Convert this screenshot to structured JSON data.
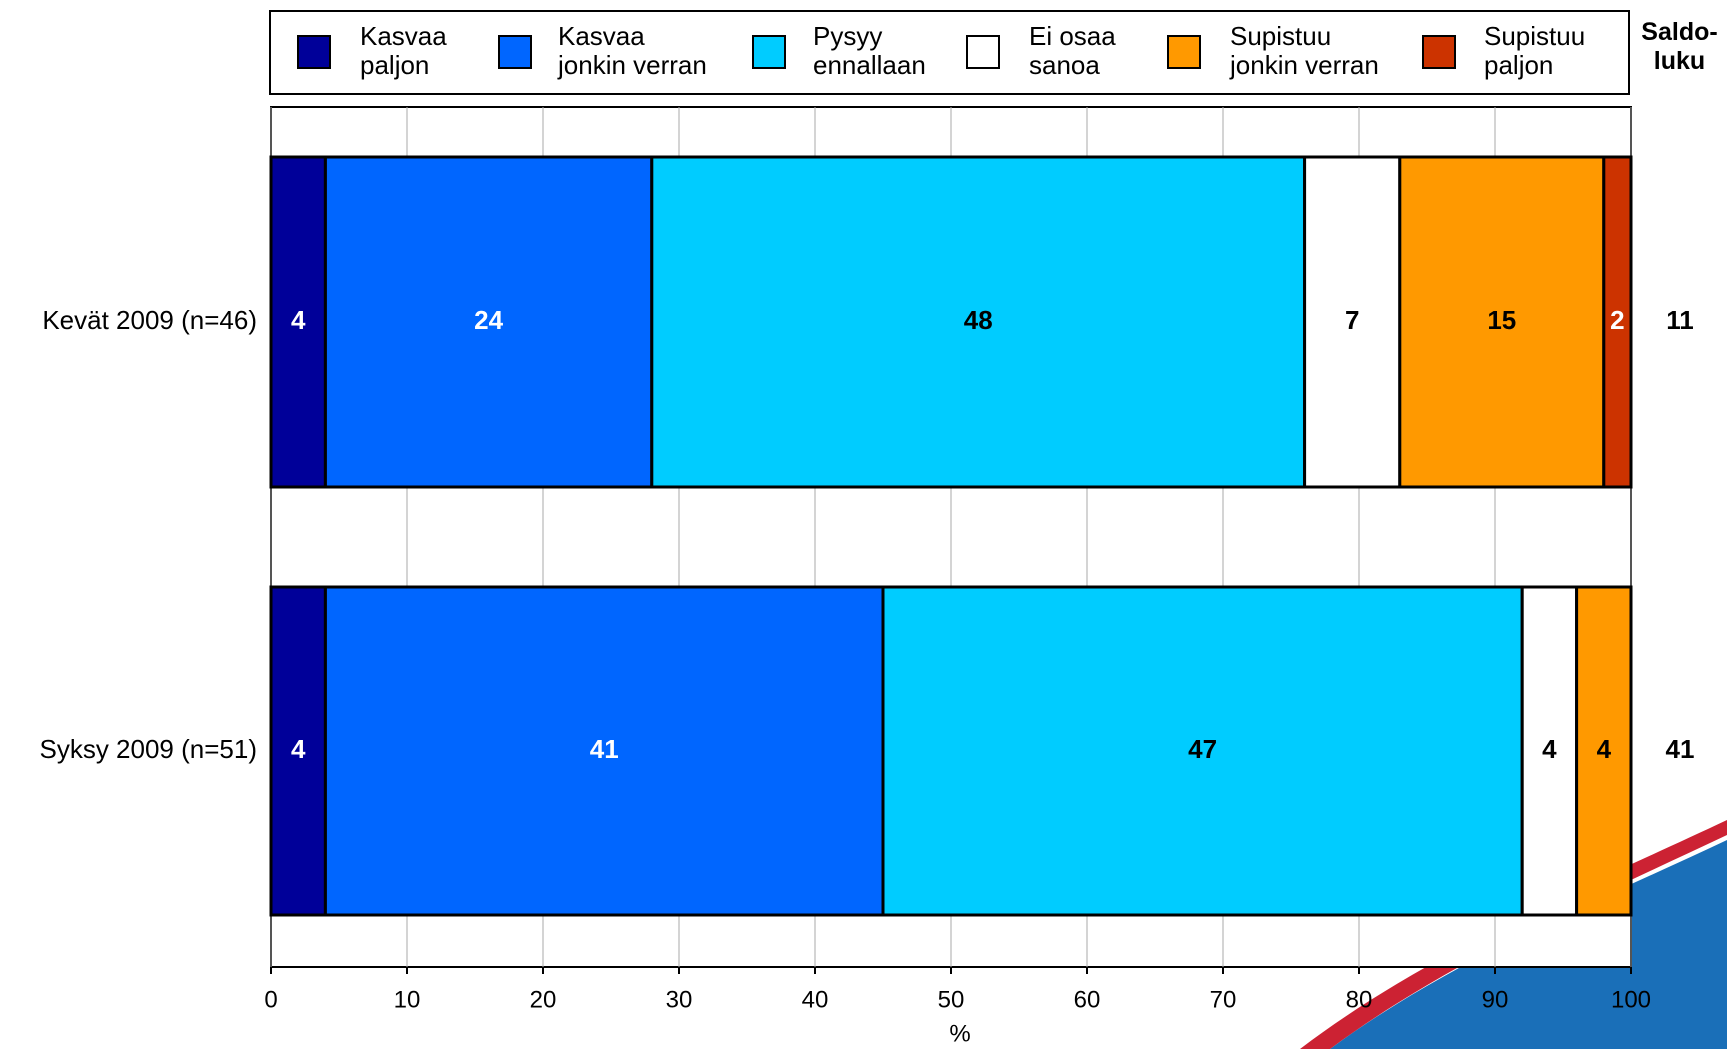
{
  "chart_data": {
    "type": "stacked-barh",
    "categories": [
      "Kevät 2009 (n=46)",
      "Syksy 2009 (n=51)"
    ],
    "series": [
      {
        "name": "Kasvaa\npaljon",
        "color": "#000099",
        "label_color": "#ffffff",
        "values": [
          4,
          4
        ]
      },
      {
        "name": "Kasvaa\njonkin verran",
        "color": "#0066ff",
        "label_color": "#ffffff",
        "values": [
          24,
          41
        ]
      },
      {
        "name": "Pysyy\nennallaan",
        "color": "#00ccff",
        "label_color": "#000000",
        "values": [
          48,
          47
        ]
      },
      {
        "name": "Ei osaa\nsanoa",
        "color": "#ffffff",
        "label_color": "#000000",
        "values": [
          7,
          4
        ]
      },
      {
        "name": "Supistuu\njonkin verran",
        "color": "#ff9900",
        "label_color": "#000000",
        "values": [
          15,
          4
        ]
      },
      {
        "name": "Supistuu\npaljon",
        "color": "#cc3300",
        "label_color": "#ffffff",
        "values": [
          2,
          0
        ]
      }
    ],
    "balance_label": "Saldo-\nluku",
    "balance": [
      11,
      41
    ],
    "xlabel": "%",
    "xlim": [
      0,
      100
    ],
    "xticks": [
      0,
      10,
      20,
      30,
      40,
      50,
      60,
      70,
      80,
      90,
      100
    ],
    "grid": true
  }
}
